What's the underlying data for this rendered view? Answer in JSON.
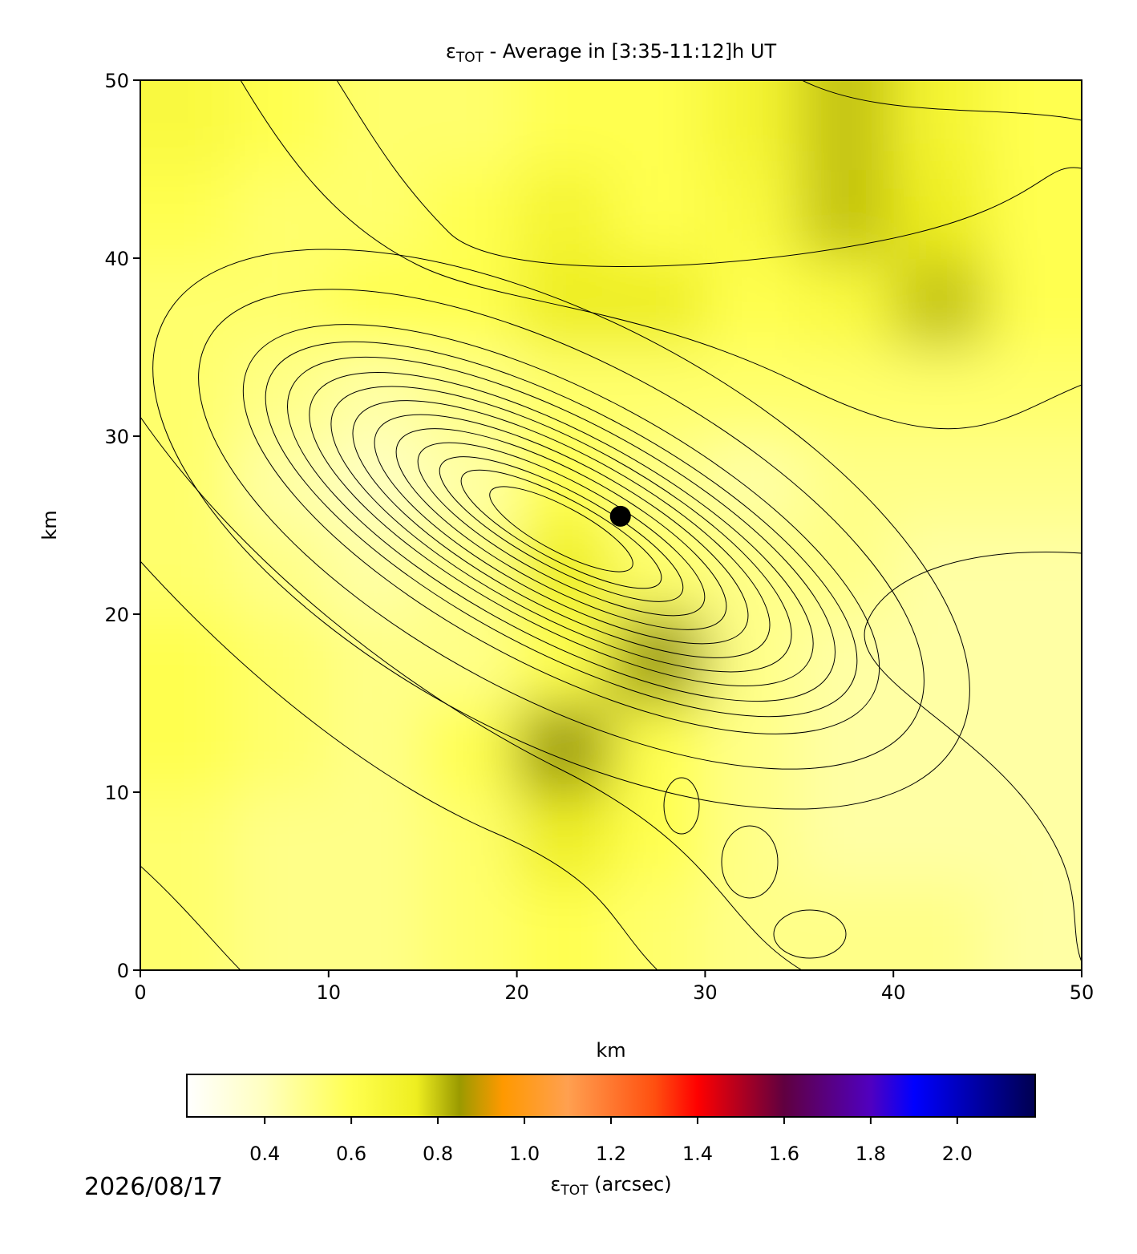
{
  "chart_data": {
    "type": "heatmap",
    "title": {
      "symbol": "ε",
      "subscript": "TOT",
      "text": " - Average in [3:35-11:12]h UT"
    },
    "x_label": "km",
    "y_label": "km",
    "xlim": [
      0,
      50
    ],
    "ylim": [
      0,
      50
    ],
    "xticks": [
      0,
      10,
      20,
      30,
      40,
      50
    ],
    "yticks": [
      0,
      10,
      20,
      30,
      40,
      50
    ],
    "x": [
      2.5,
      7.5,
      12.5,
      17.5,
      22.5,
      27.5,
      32.5,
      37.5,
      42.5,
      47.5
    ],
    "y": [
      2.5,
      7.5,
      12.5,
      17.5,
      22.5,
      27.5,
      32.5,
      37.5,
      42.5,
      47.5
    ],
    "z": [
      [
        0.55,
        0.5,
        0.5,
        0.55,
        0.6,
        0.55,
        0.5,
        0.5,
        0.5,
        0.45
      ],
      [
        0.55,
        0.5,
        0.5,
        0.55,
        0.75,
        0.6,
        0.5,
        0.45,
        0.45,
        0.45
      ],
      [
        0.6,
        0.55,
        0.5,
        0.6,
        0.85,
        0.6,
        0.5,
        0.45,
        0.45,
        0.45
      ],
      [
        0.6,
        0.55,
        0.5,
        0.5,
        0.6,
        0.85,
        0.5,
        0.45,
        0.45,
        0.45
      ],
      [
        0.55,
        0.5,
        0.45,
        0.5,
        0.75,
        0.55,
        0.5,
        0.5,
        0.45,
        0.45
      ],
      [
        0.55,
        0.45,
        0.4,
        0.45,
        0.6,
        0.5,
        0.45,
        0.5,
        0.5,
        0.5
      ],
      [
        0.55,
        0.5,
        0.45,
        0.5,
        0.55,
        0.55,
        0.55,
        0.55,
        0.55,
        0.55
      ],
      [
        0.55,
        0.55,
        0.6,
        0.6,
        0.75,
        0.75,
        0.6,
        0.65,
        0.8,
        0.6
      ],
      [
        0.6,
        0.55,
        0.55,
        0.6,
        0.7,
        0.6,
        0.65,
        0.8,
        0.75,
        0.6
      ],
      [
        0.65,
        0.6,
        0.55,
        0.55,
        0.6,
        0.6,
        0.7,
        0.8,
        0.7,
        0.6
      ]
    ],
    "point": {
      "x": 25.5,
      "y": 25.5
    },
    "colorbar": {
      "label": {
        "symbol": "ε",
        "subscript": "TOT",
        "text": " (arcsec)"
      },
      "clim": [
        0.22,
        2.18
      ],
      "ticks": [
        0.4,
        0.6,
        0.8,
        {
          "value": 1,
          "label": "1.0"
        },
        1.2,
        1.4,
        1.6,
        1.8,
        {
          "value": 2,
          "label": "2.0"
        }
      ]
    },
    "colormap": [
      {
        "value": 0.22,
        "color": "#ffffff"
      },
      {
        "value": 0.4,
        "color": "#ffffc0"
      },
      {
        "value": 0.6,
        "color": "#ffff50"
      },
      {
        "value": 0.75,
        "color": "#eeee20"
      },
      {
        "value": 0.85,
        "color": "#9a9a00"
      },
      {
        "value": 0.95,
        "color": "#ff9900"
      },
      {
        "value": 1.1,
        "color": "#ffa050"
      },
      {
        "value": 1.3,
        "color": "#ff5010"
      },
      {
        "value": 1.4,
        "color": "#ff0000"
      },
      {
        "value": 1.6,
        "color": "#600040"
      },
      {
        "value": 1.8,
        "color": "#5000c0"
      },
      {
        "value": 1.9,
        "color": "#0000ff"
      },
      {
        "value": 2.18,
        "color": "#000050"
      }
    ]
  },
  "footer": {
    "date": "2026/08/17"
  }
}
